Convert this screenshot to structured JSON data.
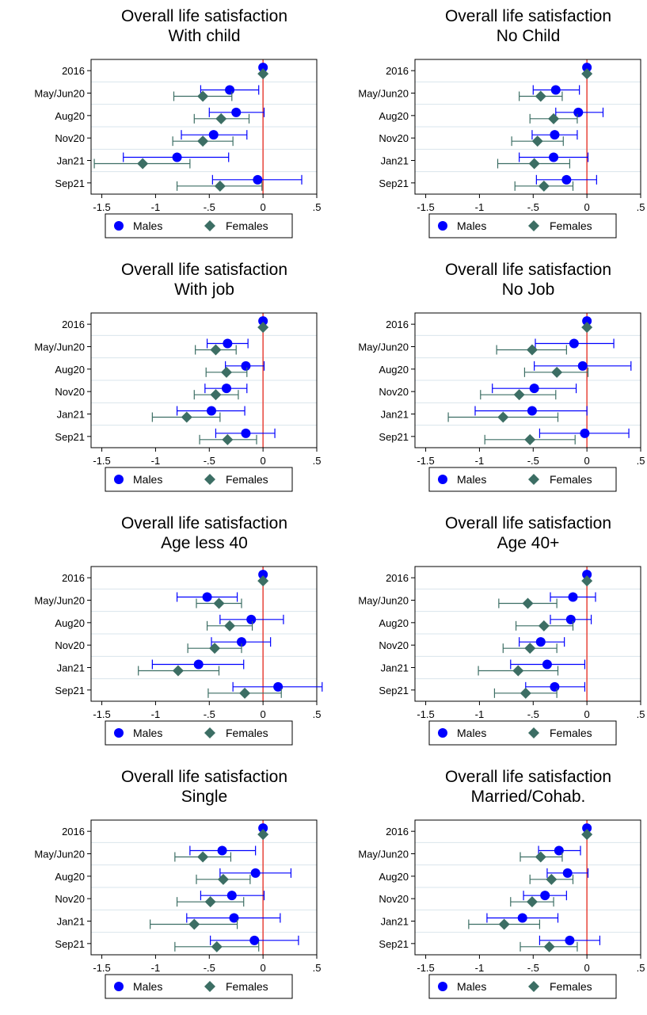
{
  "colors": {
    "males": "#0000ff",
    "females": "#3c6e64",
    "zero_line": "#e8443a",
    "axis": "#000000",
    "separator": "#d9e4ec"
  },
  "chart_data": [
    {
      "type": "scatter",
      "title": "Overall life satisfaction",
      "subtitle": "With child",
      "categories": [
        "2016",
        "May/Jun20",
        "Aug20",
        "Nov20",
        "Jan21",
        "Sep21"
      ],
      "xlim": [
        -1.6,
        0.5
      ],
      "xticks": [
        "-1.5",
        "-1",
        "-.5",
        "0",
        ".5"
      ],
      "legend": "bottom",
      "series": [
        {
          "name": "Males",
          "marker": "circle",
          "values": [
            0,
            -0.31,
            -0.25,
            -0.46,
            -0.8,
            -0.05
          ],
          "lower": [
            0,
            -0.58,
            -0.5,
            -0.76,
            -1.3,
            -0.47
          ],
          "upper": [
            0,
            -0.04,
            0.01,
            -0.15,
            -0.32,
            0.36
          ]
        },
        {
          "name": "Females",
          "marker": "diamond",
          "values": [
            0,
            -0.56,
            -0.39,
            -0.56,
            -1.12,
            -0.4
          ],
          "lower": [
            0,
            -0.83,
            -0.64,
            -0.84,
            -1.57,
            -0.8
          ],
          "upper": [
            0,
            -0.29,
            -0.13,
            -0.28,
            -0.68,
            -0.01
          ]
        }
      ]
    },
    {
      "type": "scatter",
      "title": "Overall life satisfaction",
      "subtitle": "No Child",
      "categories": [
        "2016",
        "May/Jun20",
        "Aug20",
        "Nov20",
        "Jan21",
        "Sep21"
      ],
      "xlim": [
        -1.6,
        0.5
      ],
      "xticks": [
        "-1.5",
        "-1",
        "-.5",
        "0",
        ".5"
      ],
      "legend": "bottom",
      "series": [
        {
          "name": "Males",
          "marker": "circle",
          "values": [
            0,
            -0.29,
            -0.08,
            -0.3,
            -0.31,
            -0.19
          ],
          "lower": [
            0,
            -0.5,
            -0.29,
            -0.51,
            -0.63,
            -0.47
          ],
          "upper": [
            0,
            -0.07,
            0.15,
            -0.09,
            0.01,
            0.09
          ]
        },
        {
          "name": "Females",
          "marker": "diamond",
          "values": [
            0,
            -0.43,
            -0.31,
            -0.46,
            -0.49,
            -0.4
          ],
          "lower": [
            0,
            -0.63,
            -0.53,
            -0.7,
            -0.83,
            -0.67
          ],
          "upper": [
            0,
            -0.23,
            -0.09,
            -0.22,
            -0.16,
            -0.13
          ]
        }
      ]
    },
    {
      "type": "scatter",
      "title": "Overall life satisfaction",
      "subtitle": "With job",
      "categories": [
        "2016",
        "May/Jun20",
        "Aug20",
        "Nov20",
        "Jan21",
        "Sep21"
      ],
      "xlim": [
        -1.6,
        0.5
      ],
      "xticks": [
        "-1.5",
        "-1",
        "-.5",
        "0",
        ".5"
      ],
      "legend": "bottom",
      "series": [
        {
          "name": "Males",
          "marker": "circle",
          "values": [
            0,
            -0.33,
            -0.16,
            -0.34,
            -0.48,
            -0.16
          ],
          "lower": [
            0,
            -0.52,
            -0.35,
            -0.54,
            -0.8,
            -0.44
          ],
          "upper": [
            0,
            -0.14,
            0.01,
            -0.15,
            -0.17,
            0.11
          ]
        },
        {
          "name": "Females",
          "marker": "diamond",
          "values": [
            0,
            -0.44,
            -0.34,
            -0.44,
            -0.71,
            -0.33
          ],
          "lower": [
            0,
            -0.63,
            -0.53,
            -0.64,
            -1.03,
            -0.59
          ],
          "upper": [
            0,
            -0.25,
            -0.15,
            -0.23,
            -0.4,
            -0.06
          ]
        }
      ]
    },
    {
      "type": "scatter",
      "title": "Overall life satisfaction",
      "subtitle": "No Job",
      "categories": [
        "2016",
        "May/Jun20",
        "Aug20",
        "Nov20",
        "Jan21",
        "Sep21"
      ],
      "xlim": [
        -1.6,
        0.5
      ],
      "xticks": [
        "-1.5",
        "-1",
        "-.5",
        "0",
        ".5"
      ],
      "legend": "bottom",
      "series": [
        {
          "name": "Males",
          "marker": "circle",
          "values": [
            0,
            -0.12,
            -0.04,
            -0.49,
            -0.51,
            -0.02
          ],
          "lower": [
            0,
            -0.48,
            -0.49,
            -0.88,
            -1.04,
            -0.44
          ],
          "upper": [
            0,
            0.25,
            0.41,
            -0.1,
            0.0,
            0.39
          ]
        },
        {
          "name": "Females",
          "marker": "diamond",
          "values": [
            0,
            -0.51,
            -0.28,
            -0.63,
            -0.78,
            -0.53
          ],
          "lower": [
            0,
            -0.84,
            -0.58,
            -0.99,
            -1.29,
            -0.95
          ],
          "upper": [
            0,
            -0.19,
            0.01,
            -0.29,
            -0.27,
            -0.11
          ]
        }
      ]
    },
    {
      "type": "scatter",
      "title": "Overall life satisfaction",
      "subtitle": "Age less 40",
      "categories": [
        "2016",
        "May/Jun20",
        "Aug20",
        "Nov20",
        "Jan21",
        "Sep21"
      ],
      "xlim": [
        -1.6,
        0.5
      ],
      "xticks": [
        "-1.5",
        "-1",
        "-.5",
        "0",
        ".5"
      ],
      "legend": "bottom",
      "series": [
        {
          "name": "Males",
          "marker": "circle",
          "values": [
            0,
            -0.52,
            -0.11,
            -0.2,
            -0.6,
            0.14
          ],
          "lower": [
            0,
            -0.8,
            -0.4,
            -0.48,
            -1.03,
            -0.28
          ],
          "upper": [
            0,
            -0.24,
            0.19,
            0.07,
            -0.18,
            0.55
          ]
        },
        {
          "name": "Females",
          "marker": "diamond",
          "values": [
            0,
            -0.41,
            -0.31,
            -0.45,
            -0.79,
            -0.17
          ],
          "lower": [
            0,
            -0.62,
            -0.52,
            -0.7,
            -1.16,
            -0.51
          ],
          "upper": [
            0,
            -0.2,
            -0.1,
            -0.2,
            -0.41,
            0.17
          ]
        }
      ]
    },
    {
      "type": "scatter",
      "title": "Overall life satisfaction",
      "subtitle": "Age 40+",
      "categories": [
        "2016",
        "May/Jun20",
        "Aug20",
        "Nov20",
        "Jan21",
        "Sep21"
      ],
      "xlim": [
        -1.6,
        0.5
      ],
      "xticks": [
        "-1.5",
        "-1",
        "-.5",
        "0",
        ".5"
      ],
      "legend": "bottom",
      "series": [
        {
          "name": "Males",
          "marker": "circle",
          "values": [
            0,
            -0.13,
            -0.15,
            -0.43,
            -0.37,
            -0.3
          ],
          "lower": [
            0,
            -0.34,
            -0.34,
            -0.63,
            -0.71,
            -0.57
          ],
          "upper": [
            0,
            0.08,
            0.04,
            -0.21,
            -0.02,
            -0.02
          ]
        },
        {
          "name": "Females",
          "marker": "diamond",
          "values": [
            0,
            -0.55,
            -0.4,
            -0.53,
            -0.64,
            -0.57
          ],
          "lower": [
            0,
            -0.82,
            -0.66,
            -0.78,
            -1.01,
            -0.86
          ],
          "upper": [
            0,
            -0.28,
            -0.13,
            -0.28,
            -0.27,
            -0.28
          ]
        }
      ]
    },
    {
      "type": "scatter",
      "title": "Overall life satisfaction",
      "subtitle": "Single",
      "categories": [
        "2016",
        "May/Jun20",
        "Aug20",
        "Nov20",
        "Jan21",
        "Sep21"
      ],
      "xlim": [
        -1.6,
        0.5
      ],
      "xticks": [
        "-1.5",
        "-1",
        "-.5",
        "0",
        ".5"
      ],
      "legend": "bottom",
      "series": [
        {
          "name": "Males",
          "marker": "circle",
          "values": [
            0,
            -0.38,
            -0.07,
            -0.29,
            -0.27,
            -0.08
          ],
          "lower": [
            0,
            -0.68,
            -0.4,
            -0.58,
            -0.71,
            -0.49
          ],
          "upper": [
            0,
            -0.07,
            0.26,
            0.01,
            0.16,
            0.33
          ]
        },
        {
          "name": "Females",
          "marker": "diamond",
          "values": [
            0,
            -0.56,
            -0.37,
            -0.49,
            -0.64,
            -0.43
          ],
          "lower": [
            0,
            -0.82,
            -0.62,
            -0.8,
            -1.05,
            -0.82
          ],
          "upper": [
            0,
            -0.3,
            -0.12,
            -0.18,
            -0.24,
            -0.04
          ]
        }
      ]
    },
    {
      "type": "scatter",
      "title": "Overall life satisfaction",
      "subtitle": "Married/Cohab.",
      "categories": [
        "2016",
        "May/Jun20",
        "Aug20",
        "Nov20",
        "Jan21",
        "Sep21"
      ],
      "xlim": [
        -1.6,
        0.5
      ],
      "xticks": [
        "-1.5",
        "-1",
        "-.5",
        "0",
        ".5"
      ],
      "legend": "bottom",
      "series": [
        {
          "name": "Males",
          "marker": "circle",
          "values": [
            0,
            -0.26,
            -0.18,
            -0.39,
            -0.6,
            -0.16
          ],
          "lower": [
            0,
            -0.45,
            -0.37,
            -0.59,
            -0.93,
            -0.44
          ],
          "upper": [
            0,
            -0.06,
            0.01,
            -0.19,
            -0.27,
            0.12
          ]
        },
        {
          "name": "Females",
          "marker": "diamond",
          "values": [
            0,
            -0.43,
            -0.33,
            -0.51,
            -0.77,
            -0.35
          ],
          "lower": [
            0,
            -0.62,
            -0.53,
            -0.71,
            -1.1,
            -0.62
          ],
          "upper": [
            0,
            -0.23,
            -0.13,
            -0.31,
            -0.44,
            -0.09
          ]
        }
      ]
    }
  ]
}
